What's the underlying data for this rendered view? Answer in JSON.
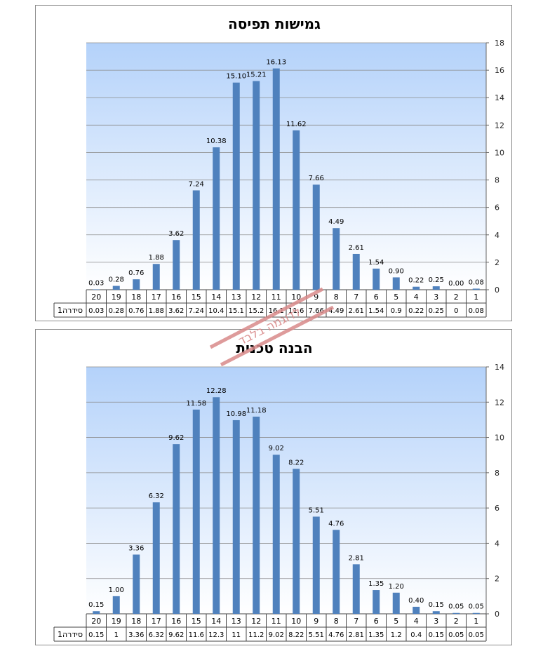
{
  "chart_data": [
    {
      "type": "bar",
      "title": "גמישות תפיסה",
      "categories": [
        "1",
        "2",
        "3",
        "4",
        "5",
        "6",
        "7",
        "8",
        "9",
        "10",
        "11",
        "12",
        "13",
        "14",
        "15",
        "16",
        "17",
        "18",
        "19",
        "20"
      ],
      "series": [
        {
          "name": "סידרה1",
          "values": [
            0.08,
            0.0,
            0.25,
            0.22,
            0.9,
            1.54,
            2.61,
            4.49,
            7.66,
            11.62,
            16.13,
            15.21,
            15.1,
            10.38,
            7.24,
            3.62,
            1.88,
            0.76,
            0.28,
            0.03
          ],
          "data_labels": [
            "0.08",
            "0.00",
            "0.25",
            "0.22",
            "0.90",
            "1.54",
            "2.61",
            "4.49",
            "7.66",
            "11.62",
            "16.13",
            "15.21",
            "15.10",
            "10.38",
            "7.24",
            "3.62",
            "1.88",
            "0.76",
            "0.28",
            "0.03"
          ],
          "table_values": [
            "0.08",
            "0",
            "0.25",
            "0.22",
            "0.9",
            "1.54",
            "2.61",
            "4.49",
            "7.66",
            "11.6",
            "16.1",
            "15.2",
            "15.1",
            "10.4",
            "7.24",
            "3.62",
            "1.88",
            "0.76",
            "0.28",
            "0.03"
          ]
        }
      ],
      "ylim": [
        0,
        18
      ],
      "yticks": [
        0,
        2,
        4,
        6,
        8,
        10,
        12,
        14,
        16,
        18
      ],
      "x_direction": "right-to-left",
      "y_axis_side": "right",
      "grid": true,
      "data_table": true,
      "colors": {
        "bar": "#4f81bd",
        "plot_top": "#b4d2fa",
        "plot_bottom": "#ffffff",
        "grid": "#8c8c8c"
      }
    },
    {
      "type": "bar",
      "title": "הבנה טכנית",
      "categories": [
        "1",
        "2",
        "3",
        "4",
        "5",
        "6",
        "7",
        "8",
        "9",
        "10",
        "11",
        "12",
        "13",
        "14",
        "15",
        "16",
        "17",
        "18",
        "19",
        "20"
      ],
      "series": [
        {
          "name": "סידרה1",
          "values": [
            0.05,
            0.05,
            0.15,
            0.4,
            1.2,
            1.35,
            2.81,
            4.76,
            5.51,
            8.22,
            9.02,
            11.18,
            10.98,
            12.28,
            11.58,
            9.62,
            6.32,
            3.36,
            1.0,
            0.15
          ],
          "data_labels": [
            "0.05",
            "0.05",
            "0.15",
            "0.40",
            "1.20",
            "1.35",
            "2.81",
            "4.76",
            "5.51",
            "8.22",
            "9.02",
            "11.18",
            "10.98",
            "12.28",
            "11.58",
            "9.62",
            "6.32",
            "3.36",
            "1.00",
            "0.15"
          ],
          "table_values": [
            "0.05",
            "0.05",
            "0.15",
            "0.4",
            "1.2",
            "1.35",
            "2.81",
            "4.76",
            "5.51",
            "8.22",
            "9.02",
            "11.2",
            "11",
            "12.3",
            "11.6",
            "9.62",
            "6.32",
            "3.36",
            "1",
            "0.15"
          ]
        }
      ],
      "ylim": [
        0,
        14
      ],
      "yticks": [
        0,
        2,
        4,
        6,
        8,
        10,
        12,
        14
      ],
      "x_direction": "right-to-left",
      "y_axis_side": "right",
      "grid": true,
      "data_table": true,
      "colors": {
        "bar": "#4f81bd",
        "plot_top": "#b4d2fa",
        "plot_bottom": "#ffffff",
        "grid": "#8c8c8c"
      }
    }
  ],
  "watermark": {
    "text": "לדוגמה בלבד",
    "color": "#c0504d"
  }
}
